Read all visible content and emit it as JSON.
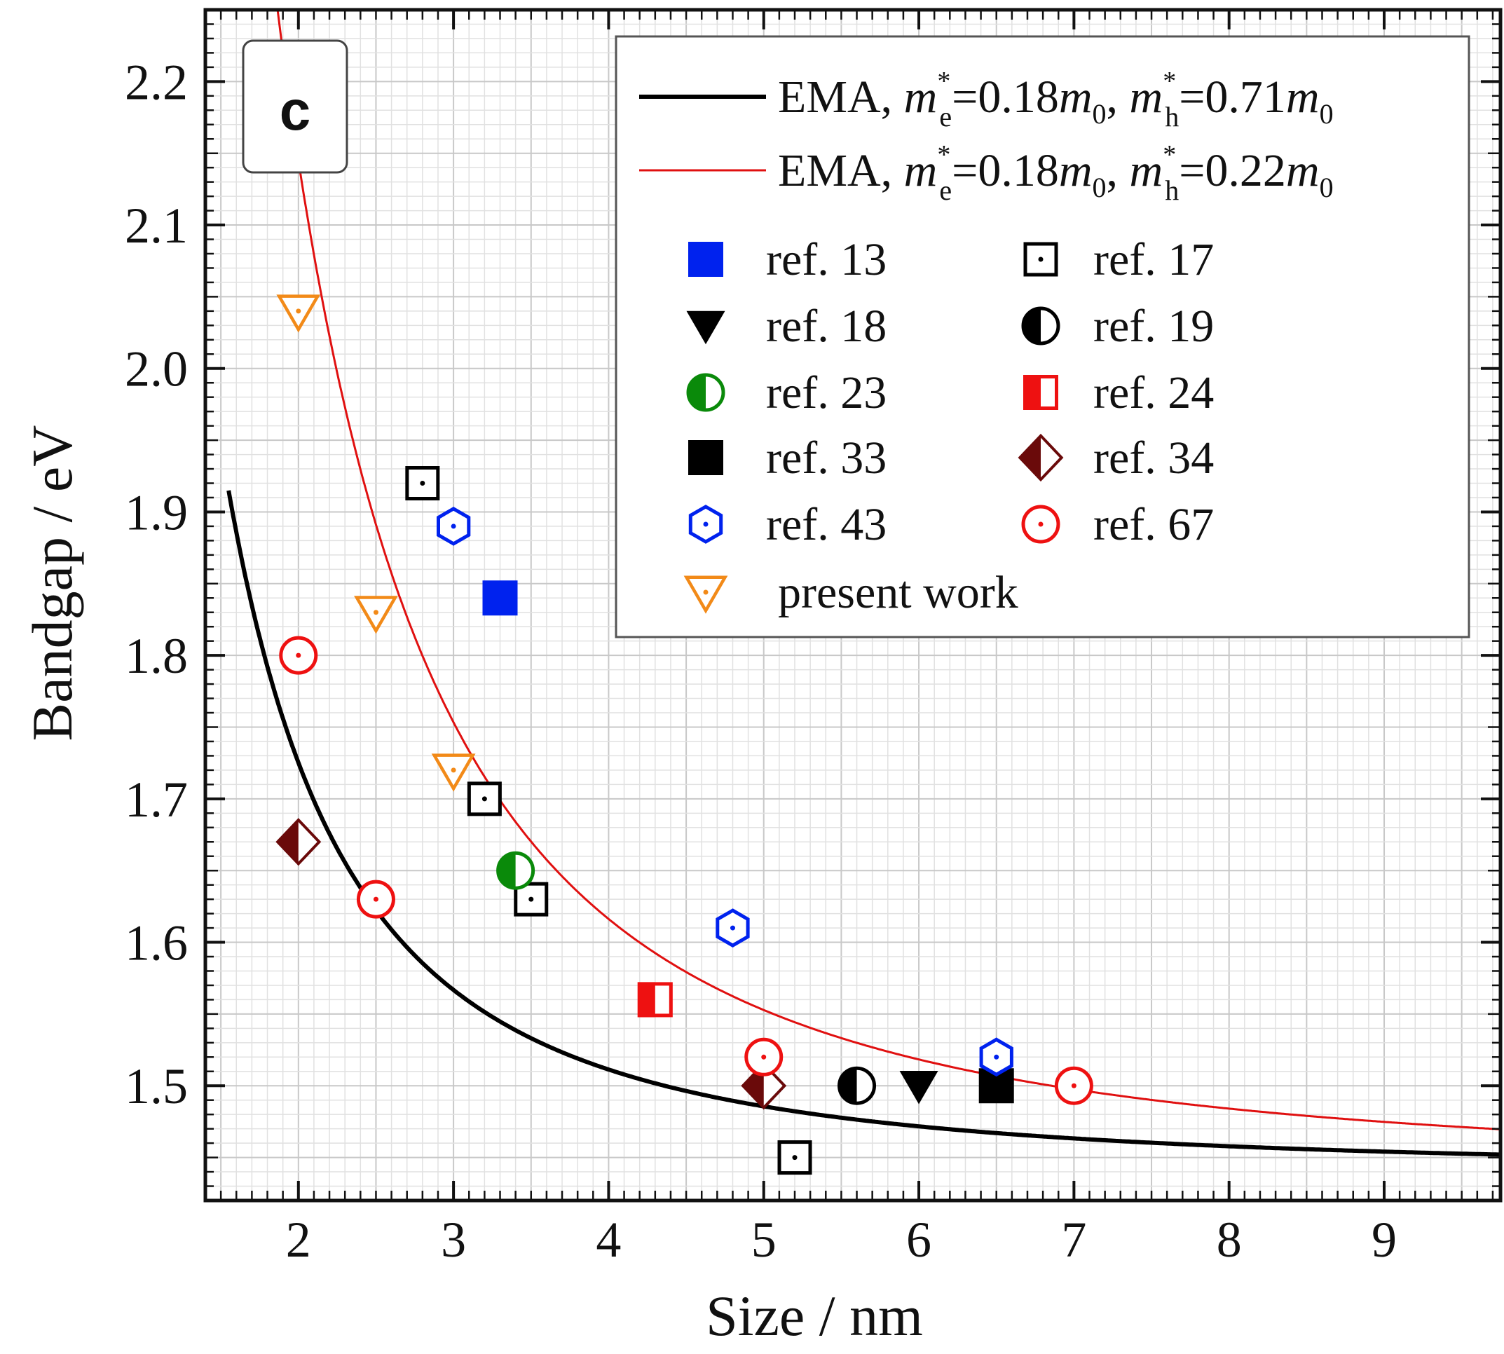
{
  "chart_data": {
    "type": "scatter",
    "panel_label": "c",
    "xlabel": "Size / nm",
    "ylabel": "Bandgap / eV",
    "xlim": [
      1.4,
      9.75
    ],
    "ylim": [
      1.42,
      2.25
    ],
    "x_ticks": [
      2,
      3,
      4,
      5,
      6,
      7,
      8,
      9
    ],
    "y_ticks": [
      1.5,
      1.6,
      1.7,
      1.8,
      1.9,
      2.0,
      2.1,
      2.2
    ],
    "x_tick_labels": [
      "2",
      "3",
      "4",
      "5",
      "6",
      "7",
      "8",
      "9"
    ],
    "y_tick_labels": [
      "1.5",
      "1.6",
      "1.7",
      "1.8",
      "1.9",
      "2.0",
      "2.1",
      "2.2"
    ],
    "grid": true,
    "legend_position": "top-right",
    "curves": [
      {
        "name": "EMA, m*e=0.18m0, m*h=0.71m0",
        "label_parts": [
          "EMA, ",
          "m",
          "*",
          "e",
          "=0.18",
          "m",
          "0",
          ", ",
          "m",
          "*",
          "h",
          "=0.71",
          "m",
          "0"
        ],
        "color": "#000000",
        "Eg_bulk": 1.44,
        "coefficient": 1.141
      },
      {
        "name": "EMA, m*e=0.18m0, m*h=0.22m0",
        "label_parts": [
          "EMA, ",
          "m",
          "*",
          "e",
          "=0.18",
          "m",
          "0",
          ", ",
          "m",
          "*",
          "h",
          "=0.22",
          "m",
          "0"
        ],
        "color": "#e01010",
        "Eg_bulk": 1.44,
        "coefficient": 2.82
      }
    ],
    "series": [
      {
        "name": "ref. 13",
        "marker": "square-filled",
        "color": "#0022ee",
        "points": [
          [
            3.3,
            1.84
          ]
        ]
      },
      {
        "name": "ref. 17",
        "marker": "square-dot",
        "color": "#000000",
        "points": [
          [
            2.8,
            1.92
          ],
          [
            3.2,
            1.7
          ],
          [
            3.5,
            1.63
          ],
          [
            5.2,
            1.45
          ]
        ]
      },
      {
        "name": "ref. 18",
        "marker": "triangle-down-filled",
        "color": "#000000",
        "points": [
          [
            6.0,
            1.5
          ]
        ]
      },
      {
        "name": "ref. 19",
        "marker": "circle-half",
        "color": "#000000",
        "points": [
          [
            5.6,
            1.5
          ]
        ]
      },
      {
        "name": "ref. 23",
        "marker": "circle-half",
        "color": "#0a8a0a",
        "points": [
          [
            3.4,
            1.65
          ]
        ]
      },
      {
        "name": "ref. 24",
        "marker": "square-half",
        "color": "#ee1111",
        "points": [
          [
            4.3,
            1.56
          ]
        ]
      },
      {
        "name": "ref. 33",
        "marker": "square-filled",
        "color": "#000000",
        "points": [
          [
            6.5,
            1.5
          ]
        ]
      },
      {
        "name": "ref. 34",
        "marker": "diamond-half",
        "color": "#6a0a0a",
        "points": [
          [
            2.0,
            1.67
          ],
          [
            5.0,
            1.5
          ]
        ]
      },
      {
        "name": "ref. 43",
        "marker": "hexagon-dot",
        "color": "#0022ee",
        "points": [
          [
            3.0,
            1.89
          ],
          [
            4.8,
            1.61
          ],
          [
            6.5,
            1.52
          ]
        ]
      },
      {
        "name": "ref. 67",
        "marker": "circle-dot",
        "color": "#ee1111",
        "points": [
          [
            2.0,
            1.8
          ],
          [
            2.5,
            1.63
          ],
          [
            5.0,
            1.52
          ],
          [
            7.0,
            1.5
          ]
        ]
      },
      {
        "name": "present work",
        "marker": "triangle-down-dot",
        "color": "#f28a18",
        "points": [
          [
            2.0,
            2.04
          ],
          [
            2.5,
            1.83
          ],
          [
            3.0,
            1.72
          ]
        ]
      }
    ]
  }
}
